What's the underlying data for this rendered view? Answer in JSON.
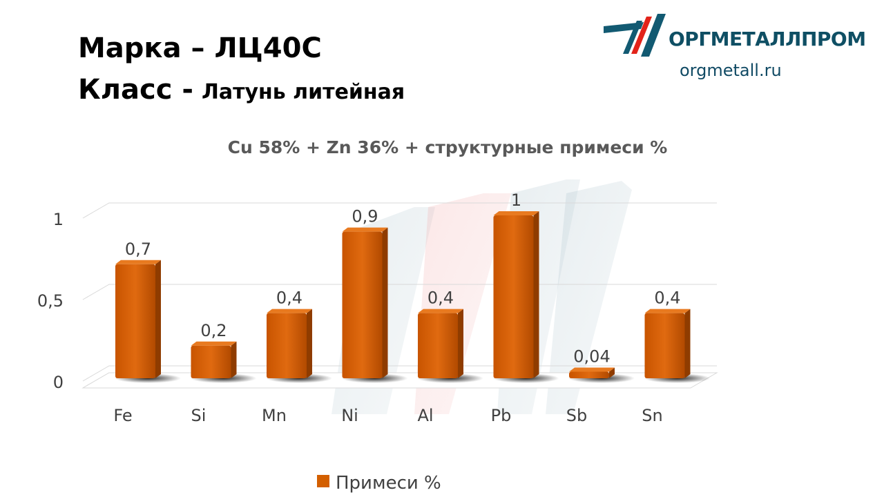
{
  "header": {
    "grade_label": "Марка",
    "grade_dash": "–",
    "grade_value": "ЛЦ40С",
    "class_label": "Класс -",
    "class_value": "Латунь литейная"
  },
  "logo": {
    "name": "ОРГМЕТАЛЛПРОМ",
    "site": "orgmetall.ru",
    "colors": {
      "blue": "#125a72",
      "red": "#e2231a"
    }
  },
  "chart_data": {
    "type": "bar",
    "title": "Cu 58% + Zn 36% + структурные примеси %",
    "categories": [
      "Fe",
      "Si",
      "Mn",
      "Ni",
      "Al",
      "Pb",
      "Sb",
      "Sn"
    ],
    "series": [
      {
        "name": "Примеси %",
        "values": [
          0.7,
          0.2,
          0.4,
          0.9,
          0.4,
          1,
          0.04,
          0.4
        ],
        "color": "#d35f00"
      }
    ],
    "data_labels": [
      "0,7",
      "0,2",
      "0,4",
      "0,9",
      "0,4",
      "1",
      "0,04",
      "0,4"
    ],
    "y_ticks": [
      {
        "value": 0,
        "label": "0"
      },
      {
        "value": 0.5,
        "label": "0,5"
      },
      {
        "value": 1,
        "label": "1"
      }
    ],
    "ylim": [
      0,
      1
    ],
    "grid": true,
    "legend_position": "bottom",
    "style": "3d"
  }
}
